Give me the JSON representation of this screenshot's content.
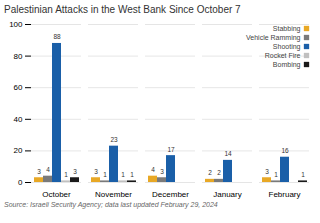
{
  "chart_data": {
    "type": "bar",
    "title": "Palestinian Attacks in the West Bank Since October 7",
    "source": "Source: Israeli Security Agency; data last updated February 29, 2024",
    "categories": [
      "October",
      "November",
      "December",
      "January",
      "February"
    ],
    "series": [
      {
        "name": "Stabbing",
        "color": "#e8a825",
        "values": [
          3,
          3,
          4,
          2,
          3
        ]
      },
      {
        "name": "Vehicle Ramming",
        "color": "#7a7a7a",
        "values": [
          4,
          1,
          3,
          2,
          1
        ]
      },
      {
        "name": "Shooting",
        "color": "#1a5fa8",
        "values": [
          88,
          23,
          17,
          14,
          16
        ]
      },
      {
        "name": "Rocket Fire",
        "color": "#c0c0c0",
        "values": [
          1,
          1,
          0,
          0,
          0
        ],
        "value_labels": [
          "1",
          "1",
          null,
          null,
          null
        ]
      },
      {
        "name": "Bombing",
        "color": "#1a1a1a",
        "values": [
          3,
          1,
          0,
          0,
          1
        ],
        "value_labels": [
          "3",
          "1",
          null,
          null,
          "1"
        ]
      }
    ],
    "ylim": [
      0,
      100
    ],
    "yticks": [
      0,
      20,
      40,
      60,
      80,
      100
    ],
    "grid": true,
    "legend": "upper right",
    "data_labels": true
  }
}
